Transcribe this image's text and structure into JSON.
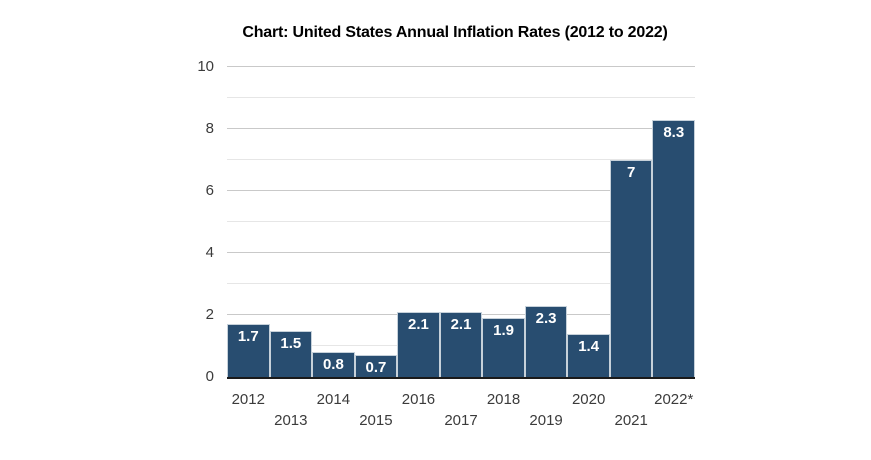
{
  "chart_data": {
    "type": "bar",
    "title": "Chart: United States Annual Inflation Rates (2012 to 2022)",
    "categories": [
      "2012",
      "2013",
      "2014",
      "2015",
      "2016",
      "2017",
      "2018",
      "2019",
      "2020",
      "2021",
      "2022*"
    ],
    "values": [
      1.7,
      1.5,
      0.8,
      0.7,
      2.1,
      2.1,
      1.9,
      2.3,
      1.4,
      7,
      8.3
    ],
    "bar_labels": [
      "1.7",
      "1.5",
      "0.8",
      "0.7",
      "2.1",
      "2.1",
      "1.9",
      "2.3",
      "1.4",
      "7",
      "8.3"
    ],
    "xlabel": "",
    "ylabel": "",
    "ylim": [
      0,
      10
    ],
    "y_ticks": [
      0,
      2,
      4,
      6,
      8,
      10
    ],
    "minor_grid_values": [
      1,
      3,
      5,
      7,
      9
    ],
    "grid": "horizontal",
    "legend": "none",
    "x_label_rows": {
      "row1": [
        "2012",
        "2014",
        "2016",
        "2018",
        "2020",
        "2022*"
      ],
      "row2": [
        "2013",
        "2015",
        "2017",
        "2019",
        "2021"
      ]
    },
    "colors": {
      "background": "#ffffff",
      "title": "#000000",
      "bar_fill": "#284d70",
      "bar_border": "#c6d1da",
      "bar_label_text": "#ffffff",
      "major_gridline": "#c9c9c9",
      "minor_gridline": "#e6e6e6",
      "axis_line": "#1a1a1a",
      "tick_label": "#3b3b3b"
    }
  }
}
